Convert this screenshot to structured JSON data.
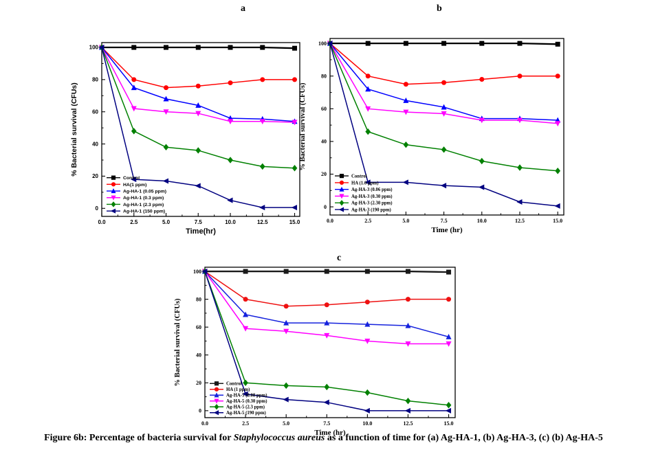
{
  "figure": {
    "panel_labels": {
      "a": "a",
      "b": "b",
      "c": "c"
    }
  },
  "caption": {
    "prefix": "Figure 6b: Percentage of bacteria survival for ",
    "italic": "Staphylococcus aureus",
    "suffix": " as a function of time for (a) Ag-HA-1, (b) Ag-HA-3, (c) (b) Ag-HA-5"
  },
  "chart_data": [
    {
      "panel_label": "a",
      "type": "line",
      "title": "",
      "xlabel": "Time(hr)",
      "ylabel": "% Bacterial survival (CFUs)",
      "x": [
        0,
        2.5,
        5,
        7.5,
        10,
        12.5,
        15
      ],
      "x_tick_labels": [
        "0.0",
        "2.5",
        "5.0",
        "7.5",
        "10.0",
        "12.5",
        "15.0"
      ],
      "y_ticks": [
        0,
        20,
        40,
        60,
        80,
        100
      ],
      "xlim": [
        0,
        15.4
      ],
      "ylim": [
        0,
        100
      ],
      "grid": false,
      "legend_position": "lower-left",
      "series": [
        {
          "name": "Control",
          "marker": "square",
          "color": "#000000",
          "values": [
            100,
            100,
            100,
            100,
            100,
            100,
            99.5
          ]
        },
        {
          "name": "HA(1 ppm)",
          "marker": "circle",
          "color": "#ff0000",
          "values": [
            100,
            80,
            75,
            76,
            78,
            80,
            80
          ]
        },
        {
          "name": "Ag-HA-1 (0.05 ppm)",
          "marker": "triangle-up",
          "color": "#0000ff",
          "values": [
            100,
            75,
            68,
            64,
            56,
            55.5,
            54
          ]
        },
        {
          "name": "Ag-HA-1 (0.3 ppm)",
          "marker": "triangle-down",
          "color": "#ff00ff",
          "values": [
            100,
            62,
            60,
            59,
            54,
            54,
            53.5
          ]
        },
        {
          "name": "Ag-HA-1 (2.3 ppm)",
          "marker": "diamond",
          "color": "#008000",
          "values": [
            100,
            48,
            38,
            36,
            30,
            26,
            25
          ]
        },
        {
          "name": "Ag-HA-1 (150 ppm)",
          "marker": "triangle-left",
          "color": "#000080",
          "values": [
            100,
            18,
            17,
            14,
            5,
            0.5,
            0.5
          ]
        }
      ]
    },
    {
      "panel_label": "b",
      "type": "line",
      "title": "",
      "xlabel": "Time (hr)",
      "ylabel": "% Bacterial survival (CFUs)",
      "x": [
        0,
        2.5,
        5,
        7.5,
        10,
        12.5,
        15
      ],
      "x_tick_labels": [
        "0.0",
        "2.5",
        "5.0",
        "7.5",
        "10.0",
        "12.5",
        "15.0"
      ],
      "y_ticks": [
        0,
        20,
        40,
        60,
        80,
        100
      ],
      "xlim": [
        0,
        15.4
      ],
      "ylim": [
        0,
        100
      ],
      "grid": false,
      "legend_position": "lower-left",
      "series": [
        {
          "name": "Control",
          "marker": "square",
          "color": "#000000",
          "values": [
            100,
            100,
            100,
            100,
            100,
            100,
            99.5
          ]
        },
        {
          "name": "HA (1.0 ppm)",
          "marker": "circle",
          "color": "#ff0000",
          "values": [
            100,
            80,
            75,
            76,
            78,
            80,
            80
          ]
        },
        {
          "name": "Ag-HA-3 (0.06 ppm)",
          "marker": "triangle-up",
          "color": "#0000ff",
          "values": [
            100,
            72,
            65,
            61,
            54,
            54,
            53
          ]
        },
        {
          "name": "Ag-HA-3 (0.30 ppm)",
          "marker": "triangle-down",
          "color": "#ff00ff",
          "values": [
            100,
            60,
            58,
            57,
            53,
            53,
            51
          ]
        },
        {
          "name": "Ag-HA-3 (2.30 ppm)",
          "marker": "diamond",
          "color": "#008000",
          "values": [
            100,
            46,
            38,
            35,
            28,
            24,
            22
          ]
        },
        {
          "name": "Ag-HA-3 (190 ppm)",
          "marker": "triangle-left",
          "color": "#000080",
          "values": [
            100,
            15,
            15,
            13,
            12,
            3,
            0.5
          ]
        }
      ]
    },
    {
      "panel_label": "c",
      "type": "line",
      "title": "",
      "xlabel": "Time (hr)",
      "ylabel": "% Bacterial survival (CFUs)",
      "x": [
        0,
        2.5,
        5,
        7.5,
        10,
        12.5,
        15
      ],
      "x_tick_labels": [
        "0.0",
        "2.5",
        "5.0",
        "7.5",
        "10.0",
        "12.5",
        "15.0"
      ],
      "y_ticks": [
        0,
        20,
        40,
        60,
        80,
        100
      ],
      "xlim": [
        0,
        15.4
      ],
      "ylim": [
        0,
        100
      ],
      "grid": false,
      "legend_position": "lower-left",
      "series": [
        {
          "name": "Control",
          "marker": "square",
          "color": "#1a1a1a",
          "values": [
            100,
            100,
            100,
            100,
            100,
            100,
            99.5
          ]
        },
        {
          "name": "HA (1 ppm)",
          "marker": "circle",
          "color": "#ee1111",
          "values": [
            100,
            80,
            75,
            76,
            78,
            80,
            80
          ]
        },
        {
          "name": "Ag-HA-5 (0.08 ppm)",
          "marker": "triangle-up",
          "color": "#1522dd",
          "values": [
            100,
            69,
            63,
            63,
            62,
            61,
            53
          ]
        },
        {
          "name": "Ag-HA-5 (0.30 ppm)",
          "marker": "triangle-down",
          "color": "#ff00ff",
          "values": [
            100,
            59,
            57,
            54,
            50,
            48,
            48
          ]
        },
        {
          "name": "Ag-HA-5 (2.3 ppm)",
          "marker": "diamond",
          "color": "#008000",
          "values": [
            100,
            20,
            18,
            17,
            13,
            7,
            4
          ]
        },
        {
          "name": "Ag-HA-5 (190 ppm)",
          "marker": "triangle-left",
          "color": "#000080",
          "values": [
            100,
            12,
            8,
            6,
            0,
            0,
            0
          ]
        }
      ]
    }
  ]
}
